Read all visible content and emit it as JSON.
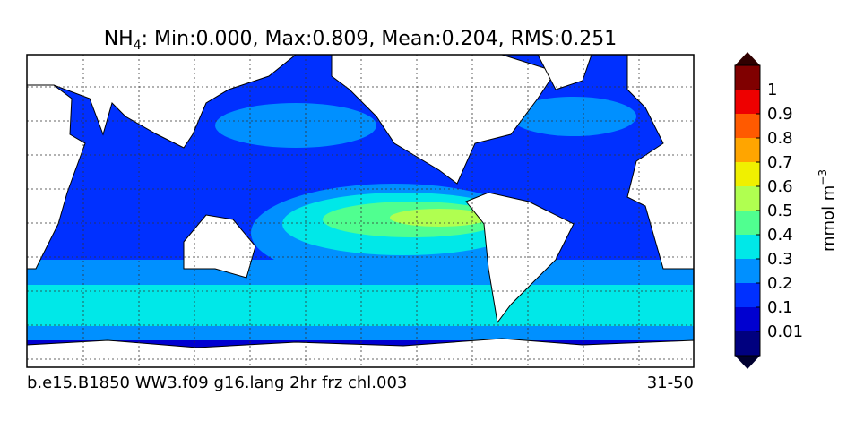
{
  "title": {
    "species": "NH",
    "subscript": "4",
    "stats": ": Min:0.000, Max:0.809, Mean:0.204, RMS:0.251"
  },
  "colorbar": {
    "ticks": [
      0.01,
      0.1,
      0.2,
      0.3,
      0.4,
      0.5,
      0.6,
      0.7,
      0.8,
      0.9,
      1
    ],
    "colors": [
      "#00007f",
      "#0000d0",
      "#0030ff",
      "#0090ff",
      "#00e8e8",
      "#50ff90",
      "#b0ff50",
      "#f0f000",
      "#ffa500",
      "#ff5a00",
      "#ee0000",
      "#800000"
    ],
    "under_color": "#000030",
    "over_color": "#300000",
    "label": {
      "text": "mmol m",
      "superscript": "−3"
    }
  },
  "footer": {
    "case": "b.e15.B1850 WW3.f09 g16.lang 2hr frz chl.003",
    "years": "31-50"
  }
}
